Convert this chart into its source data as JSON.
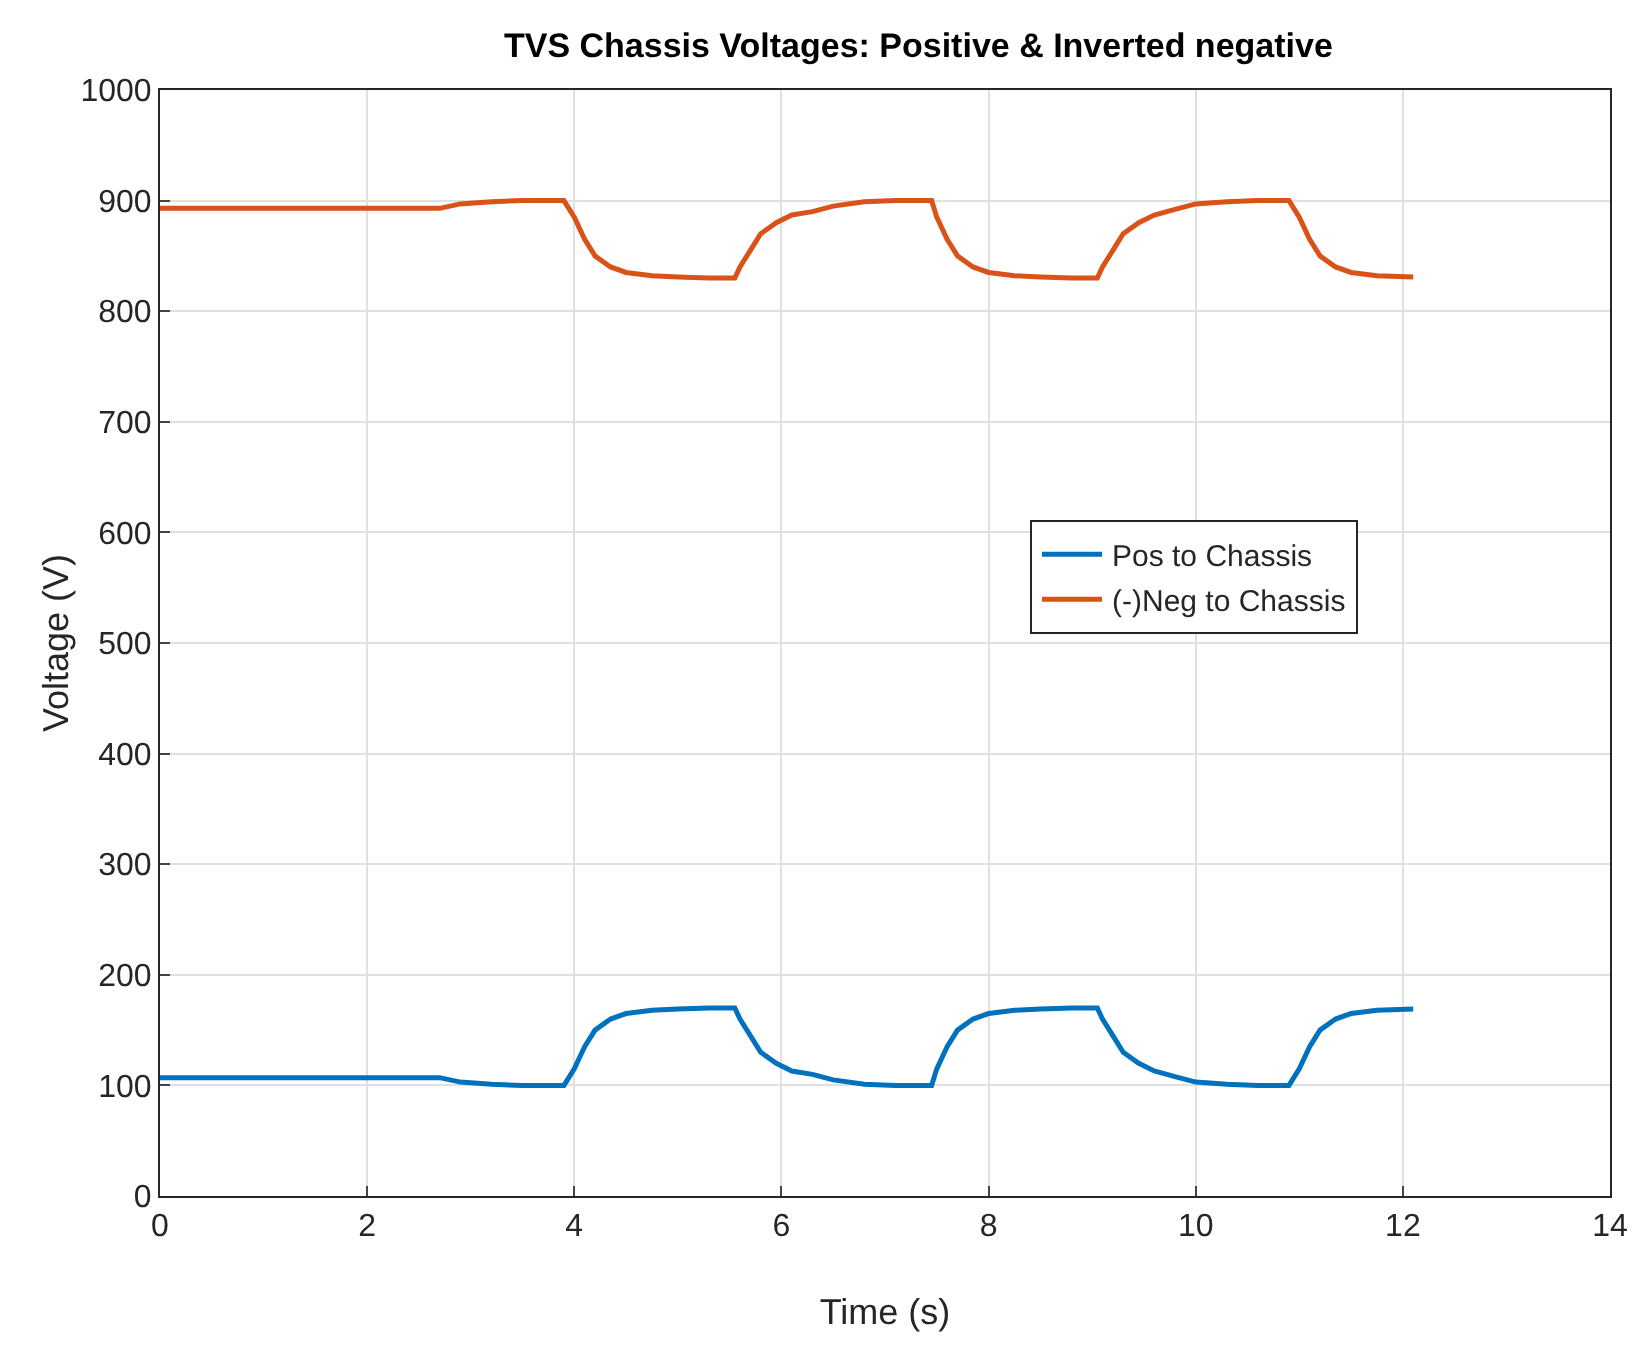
{
  "chart_data": {
    "type": "line",
    "title": "TVS Chassis Voltages: Positive & Inverted negative",
    "xlabel": "Time (s)",
    "ylabel": "Voltage (V)",
    "x": [
      0,
      1,
      2,
      2.7,
      2.9,
      3.2,
      3.5,
      3.9,
      4.0,
      4.1,
      4.2,
      4.35,
      4.5,
      4.75,
      5.0,
      5.3,
      5.55,
      5.6,
      5.7,
      5.8,
      5.95,
      6.1,
      6.3,
      6.5,
      6.8,
      7.1,
      7.45,
      7.5,
      7.6,
      7.7,
      7.85,
      8.0,
      8.25,
      8.5,
      8.8,
      9.05,
      9.1,
      9.2,
      9.3,
      9.45,
      9.6,
      9.8,
      10.0,
      10.3,
      10.6,
      10.9,
      11.0,
      11.1,
      11.2,
      11.35,
      11.5,
      11.75,
      12.1
    ],
    "series": [
      {
        "name": "Pos to Chassis",
        "color": "#0072bd",
        "values": [
          107,
          107,
          107,
          107,
          103,
          101,
          100,
          100,
          115,
          135,
          150,
          160,
          165,
          168,
          169,
          170,
          170,
          160,
          145,
          130,
          120,
          113,
          110,
          105,
          101,
          100,
          100,
          115,
          135,
          150,
          160,
          165,
          168,
          169,
          170,
          170,
          160,
          145,
          130,
          120,
          113,
          108,
          103,
          101,
          100,
          100,
          115,
          135,
          150,
          160,
          165,
          168,
          169
        ]
      },
      {
        "name": "(-)Neg to Chassis",
        "color": "#d95319",
        "values": [
          893,
          893,
          893,
          893,
          897,
          899,
          900,
          900,
          885,
          865,
          850,
          840,
          835,
          832,
          831,
          830,
          830,
          840,
          855,
          870,
          880,
          887,
          890,
          895,
          899,
          900,
          900,
          885,
          865,
          850,
          840,
          835,
          832,
          831,
          830,
          830,
          840,
          855,
          870,
          880,
          887,
          892,
          897,
          899,
          900,
          900,
          885,
          865,
          850,
          840,
          835,
          832,
          831
        ]
      }
    ],
    "xlim": [
      0,
      14
    ],
    "xticks": [
      0,
      2,
      4,
      6,
      8,
      10,
      12,
      14
    ],
    "ylim": [
      0,
      1000
    ],
    "yticks": [
      0,
      100,
      200,
      300,
      400,
      500,
      600,
      700,
      800,
      900,
      1000
    ],
    "grid": true,
    "legend": "right",
    "marker": "none",
    "line_style": "solid"
  }
}
